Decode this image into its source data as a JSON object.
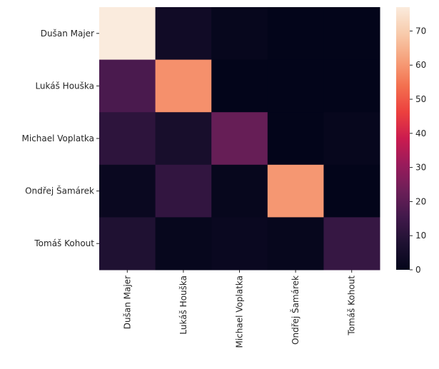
{
  "chart_data": {
    "type": "heatmap",
    "title": "",
    "xlabel": "",
    "ylabel": "",
    "rows": [
      "Dušan Majer",
      "Lukáš Houška",
      "Michael Voplatka",
      "Ondřej Šamárek",
      "Tomáš Kohout"
    ],
    "columns": [
      "Dušan Majer",
      "Lukáš Houška",
      "Michael Voplatka",
      "Ondřej Šamárek",
      "Tomáš Kohout"
    ],
    "values": [
      [
        77,
        4,
        1,
        0,
        0
      ],
      [
        17,
        59,
        0,
        0,
        0
      ],
      [
        11,
        6,
        22,
        0,
        1
      ],
      [
        2,
        12,
        1,
        60,
        0
      ],
      [
        8,
        1,
        2,
        1,
        13
      ]
    ],
    "colormap": "rocket",
    "vmin": 0,
    "vmax": 77,
    "colorbar": {
      "ticks": [
        0,
        10,
        20,
        30,
        40,
        50,
        60,
        70
      ]
    }
  }
}
